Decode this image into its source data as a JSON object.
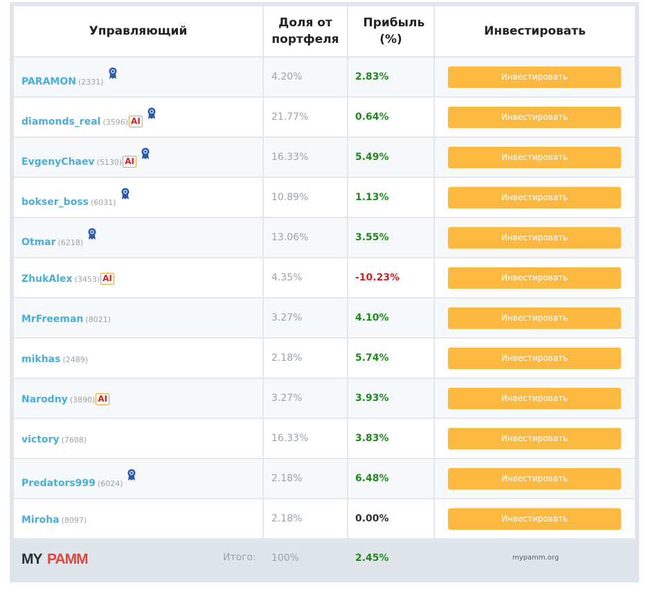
{
  "header": {
    "manager": "Управляющий",
    "share": "Доля от портфеля",
    "profit": "Прибыль (%)",
    "invest": "Инвестировать"
  },
  "rows": [
    {
      "name": "PARAMON",
      "id": "(2331)",
      "ai": "",
      "medal": true,
      "share": "4.20%",
      "profit": "2.83%",
      "sign": "pos",
      "button": "Инвестировать"
    },
    {
      "name": "diamonds_real",
      "id": "(3596)",
      "ai": "AI",
      "medal": true,
      "share": "21.77%",
      "profit": "0.64%",
      "sign": "pos",
      "button": "Инвестировать"
    },
    {
      "name": "EvgenyChaev",
      "id": "(5130)",
      "ai": "AI",
      "medal": true,
      "share": "16.33%",
      "profit": "5.49%",
      "sign": "pos",
      "button": "Инвестировать"
    },
    {
      "name": "bokser_boss",
      "id": "(6031)",
      "ai": "",
      "medal": true,
      "share": "10.89%",
      "profit": "1.13%",
      "sign": "pos",
      "button": "Инвестировать"
    },
    {
      "name": "Otmar",
      "id": "(6218)",
      "ai": "",
      "medal": true,
      "share": "13.06%",
      "profit": "3.55%",
      "sign": "pos",
      "button": "Инвестировать"
    },
    {
      "name": "ZhukAlex",
      "id": "(3453)",
      "ai": "AI",
      "medal": false,
      "share": "4.35%",
      "profit": "-10.23%",
      "sign": "neg",
      "button": "Инвестировать"
    },
    {
      "name": "MrFreeman",
      "id": "(8021)",
      "ai": "",
      "medal": false,
      "share": "3.27%",
      "profit": "4.10%",
      "sign": "pos",
      "button": "Инвестировать"
    },
    {
      "name": "mikhas",
      "id": "(2489)",
      "ai": "",
      "medal": false,
      "share": "2.18%",
      "profit": "5.74%",
      "sign": "pos",
      "button": "Инвестировать"
    },
    {
      "name": "Narodny",
      "id": "(3890)",
      "ai": "AI",
      "medal": false,
      "share": "3.27%",
      "profit": "3.93%",
      "sign": "pos",
      "button": "Инвестировать"
    },
    {
      "name": "victory",
      "id": "(7608)",
      "ai": "",
      "medal": false,
      "share": "16.33%",
      "profit": "3.83%",
      "sign": "pos",
      "button": "Инвестировать"
    },
    {
      "name": "Predators999",
      "id": "(6024)",
      "ai": "",
      "medal": true,
      "share": "2.18%",
      "profit": "6.48%",
      "sign": "pos",
      "button": "Инвестировать"
    },
    {
      "name": "Miroha",
      "id": "(8097)",
      "ai": "",
      "medal": false,
      "share": "2.18%",
      "profit": "0.00%",
      "sign": "zero",
      "button": "Инвестировать"
    }
  ],
  "footer": {
    "logo_text": "MYPAMM",
    "total_label": "Итого:",
    "total_share": "100%",
    "total_profit": "2.45%",
    "site": "mypamm.org"
  },
  "colors": {
    "link": "#4aaed6",
    "positive": "#1e8a1e",
    "negative": "#d21f1f",
    "button": "#fcb941",
    "logo": "#e0443c",
    "medal": "#2b5aa8"
  },
  "icons": {
    "medal": "medal-icon",
    "ai": "ai-badge"
  }
}
